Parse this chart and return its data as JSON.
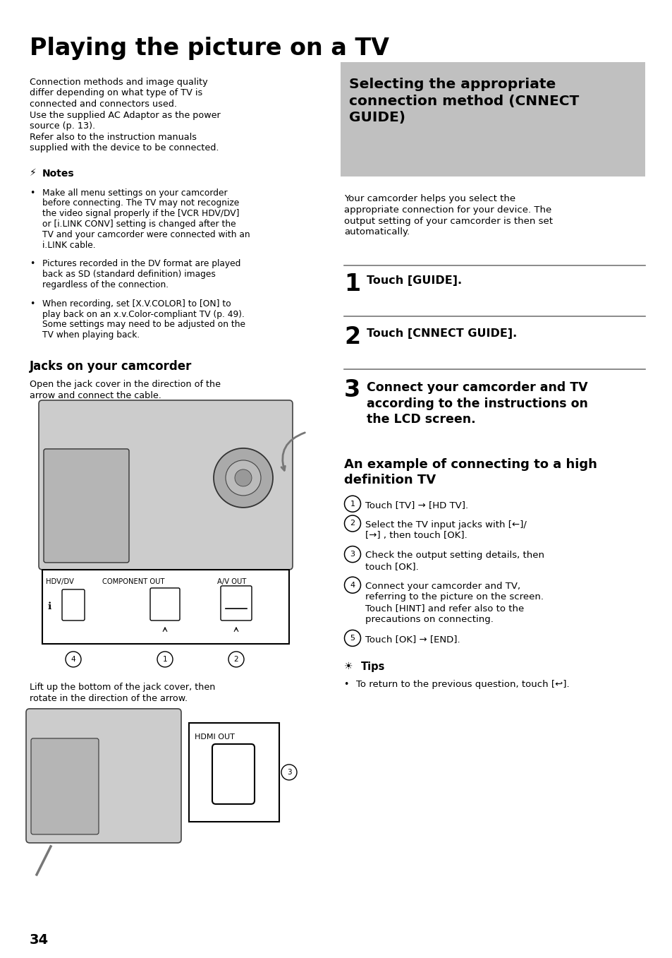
{
  "title": "Playing the picture on a TV",
  "bg_color": "#ffffff",
  "page_number": "34",
  "sidebar_bg": "#c0c0c0",
  "sidebar_title": "Selecting the appropriate\nconnection method (CNNECT\nGUIDE)",
  "left_intro_lines": [
    "Connection methods and image quality",
    "differ depending on what type of TV is",
    "connected and connectors used.",
    "Use the supplied AC Adaptor as the power",
    "source (p. 13).",
    "Refer also to the instruction manuals",
    "supplied with the device to be connected."
  ],
  "notes_bullet1": [
    "Make all menu settings on your camcorder",
    "before connecting. The TV may not recognize",
    "the video signal properly if the [VCR HDV/DV]",
    "or [i.LINK CONV] setting is changed after the",
    "TV and your camcorder were connected with an",
    "i.LINK cable."
  ],
  "notes_bullet2": [
    "Pictures recorded in the DV format are played",
    "back as SD (standard definition) images",
    "regardless of the connection."
  ],
  "notes_bullet3": [
    "When recording, set [X.V.COLOR] to [ON] to",
    "play back on an x.v.Color-compliant TV (p. 49).",
    "Some settings may need to be adjusted on the",
    "TV when playing back."
  ],
  "jacks_header": "Jacks on your camcorder",
  "jacks_text1": "Open the jack cover in the direction of the",
  "jacks_text2": "arrow and connect the cable.",
  "jack_labels": [
    "HDV/DV",
    "COMPONENT OUT",
    "A/V OUT"
  ],
  "lift_text1": "Lift up the bottom of the jack cover, then",
  "lift_text2": "rotate in the direction of the arrow.",
  "right_desc_lines": [
    "Your camcorder helps you select the",
    "appropriate connection for your device. The",
    "output setting of your camcorder is then set",
    "automatically."
  ],
  "step1_num": "1",
  "step1_text": "Touch [GUIDE].",
  "step2_num": "2",
  "step2_text": "Touch [CNNECT GUIDE].",
  "step3_num": "3",
  "step3_text_lines": [
    "Connect your camcorder and TV",
    "according to the instructions on",
    "the LCD screen."
  ],
  "hd_header_lines": [
    "An example of connecting to a high",
    "definition TV"
  ],
  "hd_step1": "Touch [TV] → [HD TV].",
  "hd_step2a": "Select the TV input jacks with [←]/",
  "hd_step2b": "[→] , then touch [OK].",
  "hd_step3a": "Check the output setting details, then",
  "hd_step3b": "touch [OK].",
  "hd_step4a": "Connect your camcorder and TV,",
  "hd_step4b": "referring to the picture on the screen.",
  "hd_step4c": "Touch [HINT] and refer also to the",
  "hd_step4d": "precautions on connecting.",
  "hd_step5": "Touch [OK] → [END].",
  "tips_line": "To return to the previous question, touch [↩].",
  "hdmi_label": "HDMI OUT"
}
